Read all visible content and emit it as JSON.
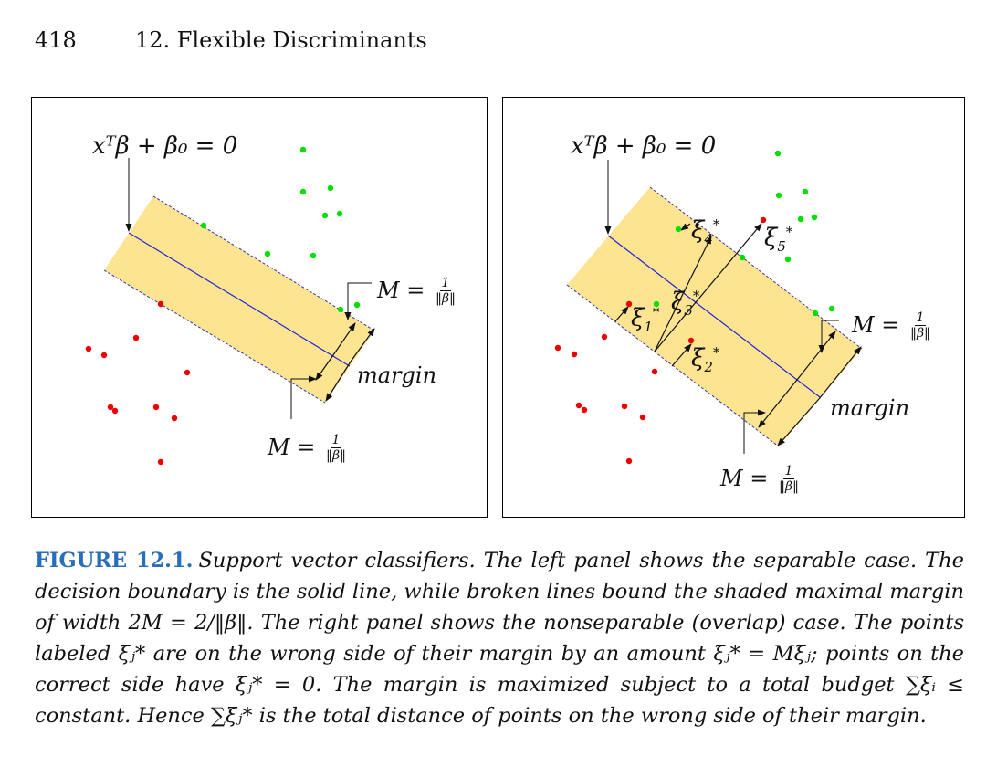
{
  "header": {
    "page_number": "418",
    "chapter": "12.  Flexible Discriminants"
  },
  "figure": {
    "left_panel": {
      "boundary_label": "xᵀβ + β₀ = 0",
      "margin_label_top": "M = ",
      "margin_label_bottom": "M = ",
      "frac_num": "1",
      "frac_den": "‖β‖",
      "margin_word": "margin"
    },
    "right_panel": {
      "boundary_label": "xᵀβ + β₀ = 0",
      "margin_label_top": "M = ",
      "margin_label_bottom": "M = ",
      "frac_num": "1",
      "frac_den": "‖β‖",
      "margin_word": "margin",
      "slack_labels": [
        {
          "sym": "ξ",
          "sub": "1",
          "sup": "*"
        },
        {
          "sym": "ξ",
          "sub": "2",
          "sup": "*"
        },
        {
          "sym": "ξ",
          "sub": "3",
          "sup": "*"
        },
        {
          "sym": "ξ",
          "sub": "4",
          "sup": "*"
        },
        {
          "sym": "ξ",
          "sub": "5",
          "sup": "*"
        }
      ]
    },
    "colors": {
      "band": "#fce490",
      "boundary": "#2222dd",
      "dashed": "#3333aa",
      "green": "#00e000",
      "red": "#ee0000",
      "caption_label": "#2a6db8"
    }
  },
  "caption": {
    "label": "FIGURE 12.1.",
    "text": "Support vector classifiers. The left panel shows the separable case. The decision boundary is the solid line, while broken lines bound the shaded maximal margin of width 2M = 2/‖β‖. The right panel shows the nonseparable (overlap) case. The points labeled ξⱼ* are on the wrong side of their margin by an amount ξⱼ* = Mξⱼ; points on the correct side have ξⱼ* = 0. The margin is maximized subject to a total budget ∑ξᵢ ≤ constant. Hence ∑ξⱼ* is the total distance of points on the wrong side of their margin."
  }
}
